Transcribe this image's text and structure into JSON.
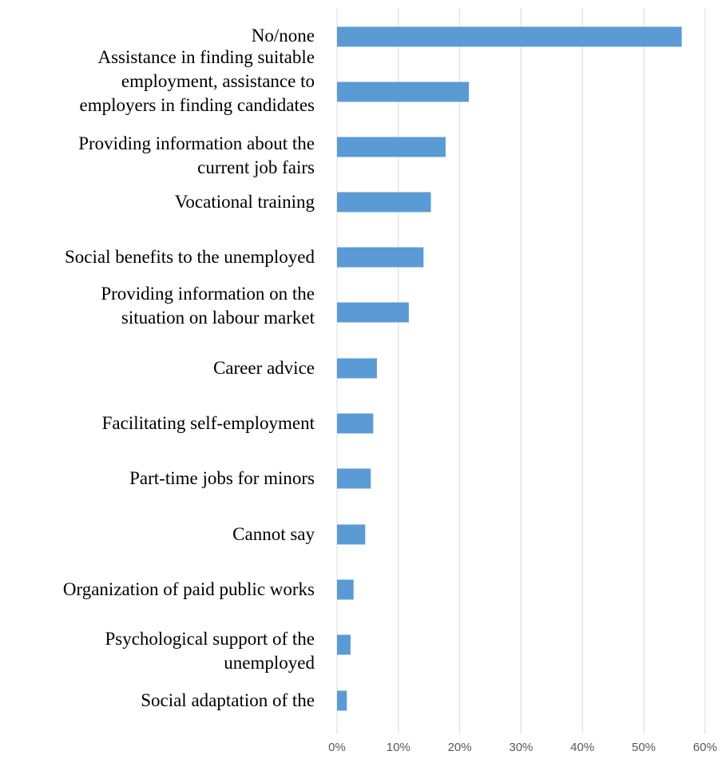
{
  "chart_data": {
    "type": "bar",
    "orientation": "horizontal",
    "title": "",
    "xlabel": "",
    "ylabel": "",
    "categories": [
      "No/none",
      "Assistance in finding suitable\nemployment, assistance to\nemployers in finding candidates",
      "Providing information about the\ncurrent job fairs",
      "Vocational training",
      "Social benefits to the unemployed",
      "Providing information on the\nsituation on labour market",
      "Career advice",
      "Facilitating self-employment",
      "Part-time jobs for minors",
      "Cannot say",
      "Organization of paid public works",
      "Psychological support of the\nunemployed",
      "Social adaptation of the"
    ],
    "values": [
      56.2,
      21.5,
      17.7,
      15.3,
      14.1,
      11.7,
      6.5,
      5.9,
      5.5,
      4.6,
      2.7,
      2.2,
      1.6
    ],
    "xlim": [
      0,
      60
    ],
    "xticks": [
      "0%",
      "10%",
      "20%",
      "30%",
      "40%",
      "50%",
      "60%"
    ],
    "grid": true,
    "legend": "none",
    "bar_color": "#5b9bd5",
    "grid_color": "#d9d9d9",
    "tick_color": "#595959"
  }
}
